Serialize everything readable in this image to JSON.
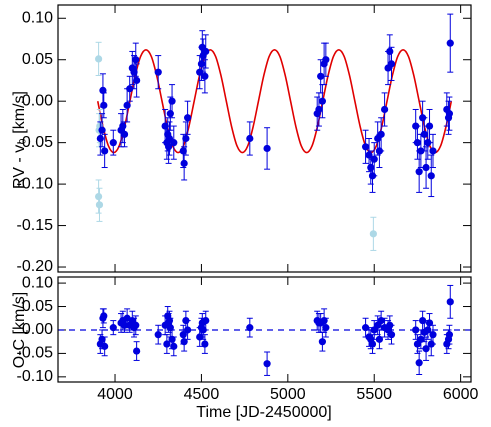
{
  "chart_data": [
    {
      "type": "scatter",
      "ylabel": "RV - v₀ [km/s]",
      "xlim": [
        3670,
        6060
      ],
      "ylim": [
        -0.206,
        0.116
      ],
      "xticks": [
        4000,
        4500,
        5000,
        5500,
        6000
      ],
      "xtick_labels": false,
      "yticks": [
        {
          "value": 0.1,
          "label": "0.10"
        },
        0.05,
        {
          "value": 0,
          "label": "0.00"
        },
        -0.05,
        {
          "value": -0.1,
          "label": "-0.10"
        },
        -0.15,
        {
          "value": -0.2,
          "label": "-0.20"
        }
      ],
      "series": [
        {
          "type": "line",
          "color": "#e00000",
          "x": [
            3900,
            3931,
            3962,
            3993,
            4024,
            4055,
            4086,
            4117,
            4148,
            4179,
            4210,
            4241,
            4272,
            4303,
            4334,
            4365,
            4396,
            4427,
            4458,
            4489,
            4520,
            4551,
            4582,
            4613,
            4644,
            4675,
            4706,
            4737,
            4768,
            4799,
            4830,
            4861,
            4892,
            4923,
            4954,
            4985,
            5016,
            5047,
            5078,
            5109,
            5140,
            5171,
            5202,
            5233,
            5264,
            5295,
            5326,
            5357,
            5388,
            5419,
            5450,
            5481,
            5512,
            5543,
            5574,
            5605,
            5636,
            5667,
            5698,
            5729,
            5760,
            5791,
            5822,
            5853,
            5884,
            5915,
            5946
          ],
          "values": [
            0,
            -0.031,
            -0.054,
            -0.062,
            -0.054,
            -0.031,
            0,
            0.031,
            0.054,
            0.062,
            0.054,
            0.031,
            0,
            -0.031,
            -0.054,
            -0.062,
            -0.054,
            -0.031,
            0,
            0.031,
            0.054,
            0.062,
            0.054,
            0.031,
            0,
            -0.031,
            -0.054,
            -0.062,
            -0.054,
            -0.031,
            0,
            0.031,
            0.054,
            0.062,
            0.054,
            0.031,
            0,
            -0.031,
            -0.054,
            -0.062,
            -0.054,
            -0.031,
            0,
            0.031,
            0.054,
            0.062,
            0.054,
            0.031,
            0,
            -0.031,
            -0.054,
            -0.062,
            -0.054,
            -0.031,
            0,
            0.031,
            0.054,
            0.062,
            0.054,
            0.031,
            0,
            -0.031,
            -0.054,
            -0.062,
            -0.054,
            -0.031,
            0
          ]
        },
        {
          "type": "errorbar",
          "color": "#add8e6",
          "x": [
            3905,
            3908,
            3912,
            3905,
            3910,
            5495
          ],
          "values": [
            0.051,
            -0.035,
            -0.03,
            -0.115,
            -0.125,
            -0.16
          ],
          "errors": [
            0.02,
            0.02,
            0.02,
            0.02,
            0.02,
            0.02
          ]
        },
        {
          "type": "errorbar",
          "color": "#0000dd",
          "x": [
            3915,
            3925,
            3930,
            3935,
            3940,
            3990,
            4035,
            4045,
            4055,
            4070,
            4085,
            4100,
            4110,
            4120,
            4125,
            4250,
            4290,
            4300,
            4305,
            4310,
            4315,
            4320,
            4330,
            4340,
            4395,
            4400,
            4410,
            4420,
            4490,
            4500,
            4505,
            4510,
            4520,
            4525,
            4780,
            4880,
            5170,
            5180,
            5190,
            5200,
            5210,
            5220,
            5450,
            5470,
            5480,
            5490,
            5500,
            5520,
            5530,
            5540,
            5560,
            5580,
            5590,
            5600,
            5740,
            5750,
            5760,
            5770,
            5780,
            5790,
            5800,
            5810,
            5820,
            5830,
            5840,
            5920,
            5930,
            5935,
            5940
          ],
          "values": [
            -0.045,
            -0.035,
            0.013,
            -0.005,
            -0.06,
            -0.05,
            -0.035,
            -0.03,
            -0.04,
            -0.005,
            0.015,
            0.04,
            0.035,
            0.05,
            0.025,
            0.035,
            -0.03,
            -0.05,
            -0.04,
            -0.055,
            -0.045,
            -0.015,
            0,
            -0.05,
            -0.06,
            -0.075,
            -0.045,
            -0.02,
            0.035,
            0.045,
            0.065,
            0.055,
            0.03,
            0.06,
            -0.045,
            -0.057,
            -0.015,
            -0.01,
            0.03,
            0,
            0.045,
            0.05,
            -0.055,
            -0.065,
            -0.08,
            -0.09,
            -0.07,
            -0.045,
            -0.06,
            -0.04,
            -0.01,
            0.04,
            0.06,
            0.045,
            -0.03,
            -0.05,
            -0.085,
            -0.06,
            -0.02,
            -0.04,
            -0.08,
            -0.05,
            -0.03,
            -0.09,
            -0.06,
            -0.01,
            -0.02,
            -0.015,
            0.07
          ],
          "errors": [
            0.02,
            0.02,
            0.02,
            0.015,
            0.02,
            0.015,
            0.02,
            0.02,
            0.015,
            0.02,
            0.015,
            0.02,
            0.02,
            0.02,
            0.02,
            0.02,
            0.02,
            0.02,
            0.02,
            0.02,
            0.02,
            0.02,
            0.02,
            0.02,
            0.02,
            0.02,
            0.02,
            0.02,
            0.02,
            0.02,
            0.02,
            0.02,
            0.02,
            0.02,
            0.02,
            0.025,
            0.02,
            0.02,
            0.02,
            0.02,
            0.025,
            0.02,
            0.02,
            0.02,
            0.02,
            0.02,
            0.02,
            0.02,
            0.02,
            0.02,
            0.02,
            0.02,
            0.02,
            0.02,
            0.02,
            0.02,
            0.025,
            0.02,
            0.02,
            0.02,
            0.025,
            0.02,
            0.02,
            0.025,
            0.02,
            0.02,
            0.02,
            0.02,
            0.035
          ]
        }
      ]
    },
    {
      "type": "scatter",
      "xlabel": "Time [JD-2450000]",
      "ylabel": "O-C [km/s]",
      "xlim": [
        3670,
        6060
      ],
      "ylim": [
        -0.111,
        0.113
      ],
      "xticks": [
        4000,
        4500,
        5000,
        5500,
        6000
      ],
      "xtick_labels": true,
      "yticks": [
        {
          "value": 0.1,
          "label": "0.10"
        },
        0.05,
        {
          "value": 0,
          "label": "0.00"
        },
        -0.05,
        {
          "value": -0.1,
          "label": "-0.10"
        }
      ],
      "reference_line": 0,
      "series": [
        {
          "type": "errorbar",
          "color": "#0000dd",
          "x": [
            3915,
            3925,
            3930,
            3935,
            3940,
            3990,
            4035,
            4045,
            4055,
            4070,
            4085,
            4100,
            4110,
            4120,
            4125,
            4250,
            4290,
            4300,
            4305,
            4310,
            4315,
            4320,
            4330,
            4340,
            4395,
            4400,
            4410,
            4420,
            4490,
            4500,
            4505,
            4510,
            4520,
            4525,
            4780,
            4880,
            5170,
            5180,
            5190,
            5200,
            5210,
            5220,
            5450,
            5470,
            5480,
            5490,
            5500,
            5520,
            5530,
            5540,
            5560,
            5580,
            5590,
            5600,
            5740,
            5750,
            5760,
            5770,
            5780,
            5790,
            5800,
            5810,
            5820,
            5830,
            5840,
            5920,
            5930,
            5935,
            5940
          ],
          "values": [
            -0.03,
            -0.02,
            0.025,
            0.03,
            -0.035,
            0.005,
            0.015,
            0.02,
            0.01,
            0.025,
            0.01,
            0.02,
            0.005,
            0.01,
            -0.045,
            -0.01,
            0.01,
            -0.03,
            0.03,
            0.015,
            0.02,
            0.005,
            -0.02,
            -0.035,
            -0.01,
            -0.025,
            0.02,
            0,
            -0.015,
            0.005,
            0.015,
            0,
            -0.03,
            0.02,
            0.005,
            -0.072,
            0.02,
            0.015,
            0.015,
            -0.025,
            0.02,
            0.005,
            0.005,
            -0.015,
            -0.02,
            -0.03,
            0,
            0.01,
            -0.02,
            0.02,
            0.005,
            0,
            0.01,
            -0.01,
            0,
            -0.03,
            -0.07,
            -0.02,
            0.02,
            -0.005,
            -0.04,
            0,
            0.015,
            -0.03,
            -0.01,
            -0.03,
            -0.02,
            -0.01,
            0.06
          ],
          "errors": [
            0.02,
            0.02,
            0.02,
            0.015,
            0.02,
            0.015,
            0.02,
            0.02,
            0.015,
            0.02,
            0.015,
            0.02,
            0.02,
            0.02,
            0.02,
            0.02,
            0.02,
            0.02,
            0.02,
            0.02,
            0.02,
            0.02,
            0.02,
            0.02,
            0.02,
            0.02,
            0.02,
            0.02,
            0.02,
            0.02,
            0.02,
            0.02,
            0.02,
            0.02,
            0.02,
            0.025,
            0.02,
            0.02,
            0.02,
            0.02,
            0.025,
            0.02,
            0.02,
            0.02,
            0.02,
            0.02,
            0.02,
            0.02,
            0.02,
            0.02,
            0.02,
            0.02,
            0.02,
            0.02,
            0.02,
            0.02,
            0.025,
            0.02,
            0.02,
            0.02,
            0.025,
            0.02,
            0.02,
            0.025,
            0.02,
            0.02,
            0.02,
            0.02,
            0.035
          ]
        }
      ]
    }
  ]
}
